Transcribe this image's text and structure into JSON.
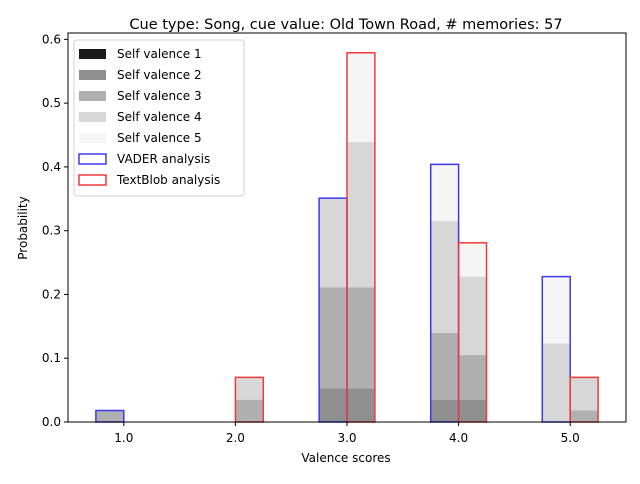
{
  "chart_data": {
    "type": "bar",
    "title": "Cue type: Song, cue value: Old Town Road, # memories: 57",
    "xlabel": "Valence scores",
    "ylabel": "Probability",
    "categories": [
      "1.0",
      "2.0",
      "3.0",
      "4.0",
      "5.0"
    ],
    "x": [
      1,
      2,
      3,
      4,
      5
    ],
    "xlim": [
      0.5,
      5.5
    ],
    "ylim": [
      0,
      0.61
    ],
    "yticks": [
      0.0,
      0.1,
      0.2,
      0.3,
      0.4,
      0.5,
      0.6
    ],
    "ytick_labels": [
      "0.0",
      "0.1",
      "0.2",
      "0.3",
      "0.4",
      "0.5",
      "0.6"
    ],
    "grid": false,
    "legend_position": "upper left",
    "stacked_series": [
      {
        "name": "Self valence 1",
        "color": "#1a1a1a",
        "vader": [
          0,
          0,
          0,
          0,
          0
        ],
        "textblob": [
          0,
          0,
          0,
          0,
          0
        ]
      },
      {
        "name": "Self valence 2",
        "color": "#8f8f8f",
        "vader": [
          0,
          0,
          0.053,
          0.035,
          0
        ],
        "textblob": [
          0,
          0,
          0.053,
          0.035,
          0
        ]
      },
      {
        "name": "Self valence 3",
        "color": "#b0b0b0",
        "vader": [
          0.018,
          0,
          0.158,
          0.105,
          0
        ],
        "textblob": [
          0,
          0.035,
          0.158,
          0.07,
          0.018
        ]
      },
      {
        "name": "Self valence 4",
        "color": "#d7d7d7",
        "vader": [
          0,
          0,
          0.14,
          0.175,
          0.123
        ],
        "textblob": [
          0,
          0.035,
          0.228,
          0.123,
          0.053
        ]
      },
      {
        "name": "Self valence 5",
        "color": "#f5f5f5",
        "vader": [
          0,
          0,
          0,
          0.088,
          0.105
        ],
        "textblob": [
          0,
          0,
          0.14,
          0.053,
          0
        ]
      }
    ],
    "outline_series": [
      {
        "name": "VADER analysis",
        "color": "#3a3af0",
        "values": [
          0.018,
          0.0,
          0.351,
          0.404,
          0.228
        ]
      },
      {
        "name": "TextBlob analysis",
        "color": "#f03a3a",
        "values": [
          0.0,
          0.07,
          0.579,
          0.281,
          0.07
        ]
      }
    ]
  }
}
